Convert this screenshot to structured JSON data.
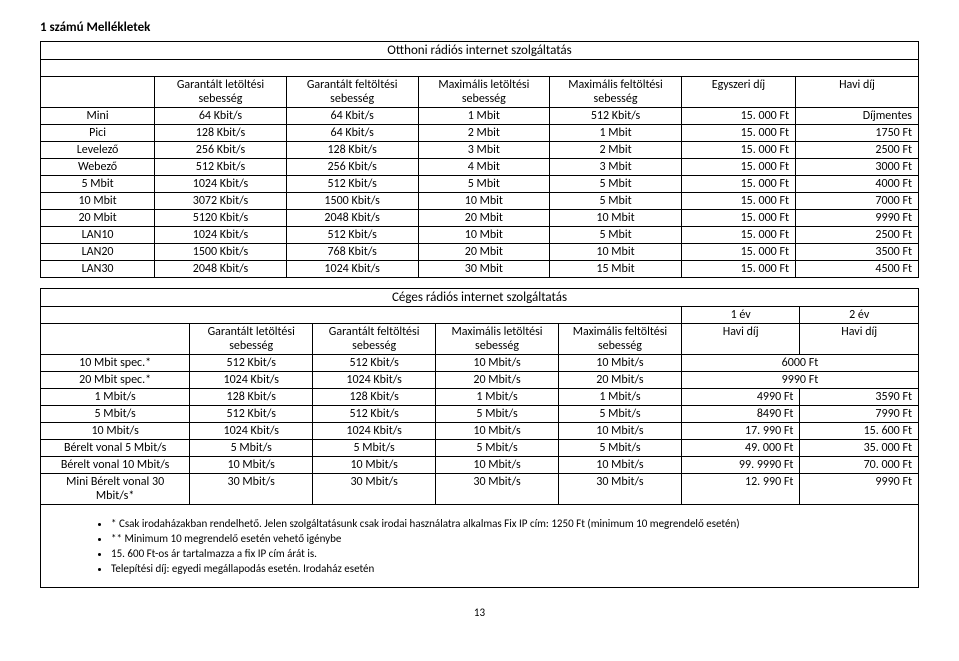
{
  "doc_title": "1 számú Mellékletek",
  "page_number": "13",
  "table1": {
    "title": "Otthoni rádiós internet szolgáltatás",
    "headers": [
      "",
      "Garantált letöltési sebesség",
      "Garantált feltöltési sebesség",
      "Maximális letöltési sebesség",
      "Maximális feltöltési sebesség",
      "Egyszeri díj",
      "Havi díj"
    ],
    "rows": [
      [
        "Mini",
        "64 Kbit/s",
        "64 Kbit/s",
        "1 Mbit",
        "512 Kbit/s",
        "15. 000 Ft",
        "Díjmentes"
      ],
      [
        "Pici",
        "128 Kbit/s",
        "64 Kbit/s",
        "2 Mbit",
        "1 Mbit",
        "15. 000 Ft",
        "1750 Ft"
      ],
      [
        "Levelező",
        "256 Kbit/s",
        "128 Kbit/s",
        "3 Mbit",
        "2 Mbit",
        "15. 000 Ft",
        "2500 Ft"
      ],
      [
        "Webező",
        "512 Kbit/s",
        "256 Kbit/s",
        "4 Mbit",
        "3 Mbit",
        "15. 000 Ft",
        "3000 Ft"
      ],
      [
        "5 Mbit",
        "1024 Kbit/s",
        "512 Kbit/s",
        "5 Mbit",
        "5 Mbit",
        "15. 000 Ft",
        "4000 Ft"
      ],
      [
        "10 Mbit",
        "3072 Kbit/s",
        "1500 Kbit/s",
        "10 Mbit",
        "5 Mbit",
        "15. 000 Ft",
        "7000 Ft"
      ],
      [
        "20 Mbit",
        "5120 Kbit/s",
        "2048 Kbit/s",
        "20 Mbit",
        "10 Mbit",
        "15. 000 Ft",
        "9990 Ft"
      ],
      [
        "LAN10",
        "1024 Kbit/s",
        "512 Kbit/s",
        "10 Mbit",
        "5 Mbit",
        "15. 000 Ft",
        "2500 Ft"
      ],
      [
        "LAN20",
        "1500 Kbit/s",
        "768 Kbit/s",
        "20 Mbit",
        "10 Mbit",
        "15. 000 Ft",
        "3500 Ft"
      ],
      [
        "LAN30",
        "2048 Kbit/s",
        "1024 Kbit/s",
        "30 Mbit",
        "15 Mbit",
        "15. 000 Ft",
        "4500 Ft"
      ]
    ]
  },
  "table2": {
    "title": "Céges rádiós internet szolgáltatás",
    "year_labels": [
      "1 év",
      "2 év"
    ],
    "headers": [
      "",
      "Garantált letöltési sebesség",
      "Garantált feltöltési sebesség",
      "Maximális letöltési sebesség",
      "Maximális feltöltési sebesség",
      "Havi díj",
      "Havi díj"
    ],
    "rows_span": [
      [
        "10 Mbit spec.*",
        "512 Kbit/s",
        "512 Kbit/s",
        "10 Mbit/s",
        "10 Mbit/s",
        "6000 Ft"
      ],
      [
        "20 Mbit spec.*",
        "1024 Kbit/s",
        "1024 Kbit/s",
        "20 Mbit/s",
        "20 Mbit/s",
        "9990 Ft"
      ]
    ],
    "rows": [
      [
        "1 Mbit/s",
        "128 Kbit/s",
        "128 Kbit/s",
        "1 Mbit/s",
        "1 Mbit/s",
        "4990 Ft",
        "3590 Ft"
      ],
      [
        "5 Mbit/s",
        "512 Kbit/s",
        "512 Kbit/s",
        "5 Mbit/s",
        "5 Mbit/s",
        "8490 Ft",
        "7990 Ft"
      ],
      [
        "10 Mbit/s",
        "1024 Kbit/s",
        "1024 Kbit/s",
        "10 Mbit/s",
        "10 Mbit/s",
        "17. 990 Ft",
        "15. 600 Ft"
      ],
      [
        "Bérelt vonal 5 Mbit/s",
        "5 Mbit/s",
        "5 Mbit/s",
        "5 Mbit/s",
        "5 Mbit/s",
        "49. 000 Ft",
        "35. 000 Ft"
      ],
      [
        "Bérelt vonal 10 Mbit/s",
        "10 Mbit/s",
        "10 Mbit/s",
        "10 Mbit/s",
        "10 Mbit/s",
        "99. 9990 Ft",
        "70. 000 Ft"
      ],
      [
        "Mini Bérelt vonal 30 Mbit/s*",
        "30 Mbit/s",
        "30 Mbit/s",
        "30 Mbit/s",
        "30 Mbit/s",
        "12. 990 Ft",
        "9990 Ft"
      ]
    ],
    "notes": [
      "* Csak irodaházakban rendelhető. Jelen szolgáltatásunk csak irodai használatra alkalmas Fix IP cím: 1250 Ft (minimum 10 megrendelő esetén)",
      "** Minimum 10 megrendelő esetén vehető igénybe",
      "15. 600 Ft-os ár tartalmazza a fix IP cím árát is.",
      "Telepítési díj: egyedi megállapodás esetén. Irodaház esetén"
    ]
  }
}
